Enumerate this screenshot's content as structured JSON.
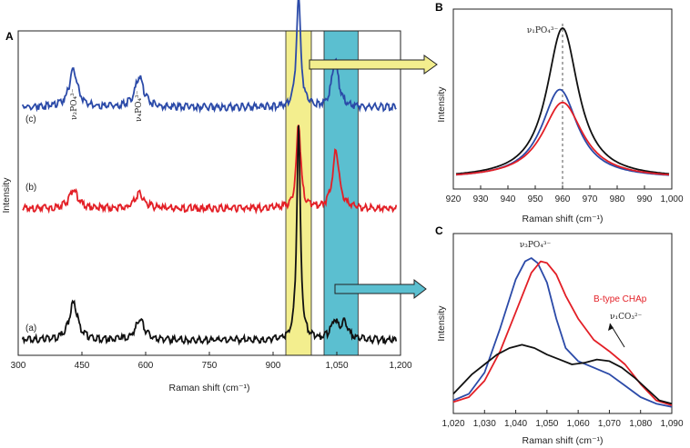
{
  "colors": {
    "black": "#111111",
    "red": "#e31f26",
    "blue": "#2b4aa8",
    "yellow": "#f3ee8e",
    "cyan": "#5bbfd0",
    "axis": "#222222"
  },
  "chart_data": [
    {
      "panel": "A",
      "type": "line",
      "xlabel": "Raman shift (cm⁻¹)",
      "ylabel": "Intensity",
      "xlim": [
        300,
        1200
      ],
      "xticks": [
        "300",
        "450",
        "600",
        "750",
        "900",
        "1,050",
        "1,200"
      ],
      "x_tick_values": [
        300,
        450,
        600,
        750,
        900,
        1050,
        1200
      ],
      "highlight_bands": [
        {
          "color": "yellow",
          "x": [
            930,
            990
          ]
        },
        {
          "color": "cyan",
          "x": [
            1020,
            1100
          ]
        }
      ],
      "annotations": [
        "ν₂PO₄³⁻",
        "ν₄PO₄³⁻"
      ],
      "series": [
        {
          "name": "(c)",
          "color": "blue",
          "baseline": 0.78,
          "peaks": [
            [
              430,
              0.12,
              12
            ],
            [
              585,
              0.1,
              12
            ],
            [
              960,
              0.36,
              6
            ],
            [
              1046,
              0.16,
              9
            ]
          ]
        },
        {
          "name": "(b)",
          "color": "red",
          "baseline": 0.45,
          "peaks": [
            [
              430,
              0.06,
              12
            ],
            [
              585,
              0.05,
              12
            ],
            [
              960,
              0.28,
              6
            ],
            [
              1048,
              0.19,
              9
            ]
          ]
        },
        {
          "name": "(a)",
          "color": "black",
          "baseline": 0.02,
          "peaks": [
            [
              430,
              0.12,
              12
            ],
            [
              587,
              0.07,
              12
            ],
            [
              960,
              0.7,
              5
            ],
            [
              1045,
              0.06,
              10
            ],
            [
              1068,
              0.05,
              10
            ]
          ]
        }
      ]
    },
    {
      "panel": "B",
      "type": "line",
      "xlabel": "Raman shift (cm⁻¹)",
      "ylabel": "Intensity",
      "xlim": [
        920,
        1000
      ],
      "xticks": [
        "920",
        "930",
        "940",
        "950",
        "960",
        "970",
        "980",
        "990",
        "1,000"
      ],
      "x_tick_values": [
        920,
        930,
        940,
        950,
        960,
        970,
        980,
        990,
        1000
      ],
      "annotation": "ν₁PO₄³⁻",
      "reference_line_x": 960,
      "series": [
        {
          "color": "black",
          "center": 960,
          "width": 7,
          "peak": 0.93
        },
        {
          "color": "blue",
          "center": 959,
          "width": 8,
          "peak": 0.55
        },
        {
          "color": "red",
          "center": 960,
          "width": 9,
          "peak": 0.47
        }
      ]
    },
    {
      "panel": "C",
      "type": "line",
      "xlabel": "Raman shift (cm⁻¹)",
      "ylabel": "Intensity",
      "xlim": [
        1020,
        1090
      ],
      "xticks": [
        "1,020",
        "1,030",
        "1,040",
        "1,050",
        "1,060",
        "1,070",
        "1,080",
        "1,090"
      ],
      "x_tick_values": [
        1020,
        1030,
        1040,
        1050,
        1060,
        1070,
        1080,
        1090
      ],
      "annotations": [
        "ν₃PO₄³⁻",
        "B-type CHAp",
        "ν₁CO₃²⁻"
      ],
      "series": [
        {
          "color": "blue",
          "x": [
            1020,
            1025,
            1030,
            1035,
            1040,
            1043,
            1045,
            1047,
            1050,
            1053,
            1056,
            1060,
            1065,
            1070,
            1075,
            1080,
            1085,
            1090
          ],
          "y": [
            0.08,
            0.12,
            0.25,
            0.52,
            0.82,
            0.93,
            0.95,
            0.92,
            0.8,
            0.58,
            0.4,
            0.32,
            0.28,
            0.24,
            0.17,
            0.1,
            0.06,
            0.04
          ]
        },
        {
          "color": "red",
          "x": [
            1020,
            1025,
            1030,
            1035,
            1040,
            1045,
            1048,
            1050,
            1053,
            1056,
            1060,
            1065,
            1070,
            1075,
            1080,
            1085,
            1090
          ],
          "y": [
            0.07,
            0.1,
            0.2,
            0.38,
            0.62,
            0.86,
            0.93,
            0.92,
            0.85,
            0.72,
            0.58,
            0.45,
            0.38,
            0.3,
            0.18,
            0.08,
            0.05
          ]
        },
        {
          "color": "black",
          "x": [
            1020,
            1023,
            1026,
            1030,
            1034,
            1038,
            1042,
            1046,
            1048,
            1050,
            1054,
            1058,
            1062,
            1066,
            1070,
            1074,
            1078,
            1082,
            1086,
            1090
          ],
          "y": [
            0.12,
            0.18,
            0.24,
            0.3,
            0.36,
            0.4,
            0.42,
            0.4,
            0.38,
            0.36,
            0.33,
            0.3,
            0.31,
            0.33,
            0.32,
            0.28,
            0.22,
            0.15,
            0.08,
            0.06
          ]
        }
      ]
    }
  ]
}
